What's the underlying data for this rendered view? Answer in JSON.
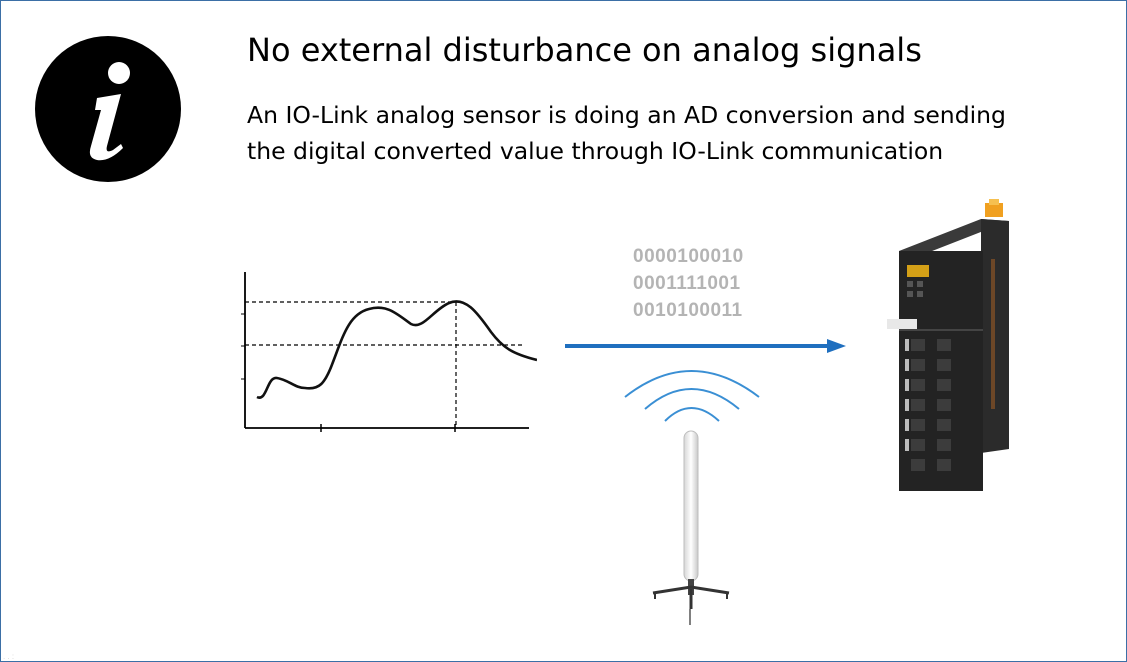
{
  "slide": {
    "title": "No external disturbance on analog signals",
    "description_lines": [
      "An IO-Link analog sensor is doing an AD conversion and sending",
      "the digital converted value through IO-Link communication"
    ]
  },
  "icons": {
    "info": "info-icon",
    "wave_graph": "analog-signal-graph-icon",
    "arrow": "arrow-right-icon",
    "antenna": "antenna-icon",
    "wireless": "wireless-signal-icon",
    "io_module": "io-link-master-module-icon"
  },
  "binary_values": [
    "0000100010",
    "0001111001",
    "0010100011"
  ],
  "colors": {
    "arrow": "#1f6fbf",
    "wireless_waves": "#3a8fd4",
    "binary_text": "#b4b4b4",
    "info_circle": "#000000",
    "slide_border": "#3b6fa6"
  }
}
